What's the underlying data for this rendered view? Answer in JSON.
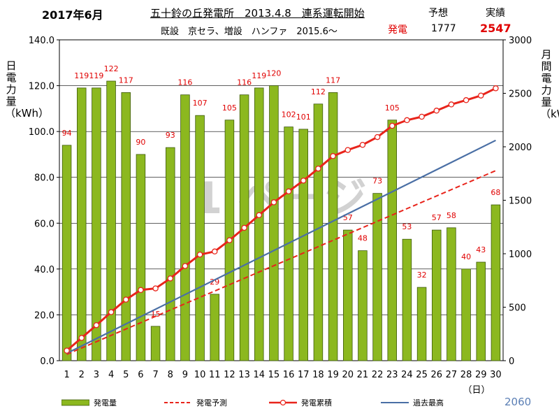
{
  "header": {
    "month": "2017年6月",
    "title": "五十鈴の丘発電所　2013.4.8　連系運転開始",
    "subtitle": "既設　京セラ、増設　ハンファ　2015.6～",
    "forecast_heading": "予想",
    "actual_heading": "実績",
    "generation_label": "発電",
    "forecast_value": "1777",
    "actual_value": "2547"
  },
  "legend": {
    "daily": "発電量",
    "forecast": "発電予測",
    "cumulative": "発電累積",
    "record": "過去最高",
    "value": "2060"
  },
  "chart_data": {
    "type": "bar",
    "left_axis_label": "日電力量（kWh）",
    "right_axis_label": "月間電力量（kWh）",
    "x_unit": "（日）",
    "days": [
      "1",
      "2",
      "3",
      "4",
      "5",
      "6",
      "7",
      "8",
      "9",
      "10",
      "11",
      "12",
      "13",
      "14",
      "15",
      "16",
      "17",
      "18",
      "19",
      "20",
      "21",
      "22",
      "23",
      "24",
      "25",
      "26",
      "27",
      "28",
      "29",
      "30"
    ],
    "left_ylim": [
      0,
      140
    ],
    "left_ticks": [
      "0.0",
      "20.0",
      "40.0",
      "60.0",
      "80.0",
      "100.0",
      "120.0",
      "140.0"
    ],
    "right_ylim": [
      0,
      3000
    ],
    "right_ticks": [
      "0",
      "500",
      "1000",
      "1500",
      "2000",
      "2500",
      "3000"
    ],
    "colors": {
      "bar": "#8cb81f",
      "bar_edge": "#3e5a0c",
      "label": "#e00000",
      "cumulative": "#e8241b",
      "forecast": "#e8241b",
      "record": "#4a6fa5"
    },
    "series": [
      {
        "name": "発電量",
        "type": "bar",
        "axis": "left",
        "values": [
          94,
          119,
          119,
          122,
          117,
          90,
          15,
          93,
          116,
          107,
          29,
          105,
          116,
          119,
          120,
          102,
          101,
          112,
          117,
          57,
          48,
          73,
          105,
          53,
          32,
          57,
          58,
          40,
          43,
          68
        ]
      },
      {
        "name": "発電累積",
        "type": "line",
        "axis": "right",
        "values": [
          94,
          213,
          332,
          454,
          571,
          661,
          676,
          769,
          885,
          992,
          1021,
          1126,
          1242,
          1361,
          1481,
          1583,
          1684,
          1796,
          1913,
          1970,
          2018,
          2091,
          2196,
          2249,
          2281,
          2338,
          2396,
          2436,
          2479,
          2547
        ]
      },
      {
        "name": "発電予測",
        "type": "line",
        "axis": "right",
        "points": [
          [
            1,
            59
          ],
          [
            30,
            1777
          ]
        ]
      },
      {
        "name": "過去最高",
        "type": "line",
        "axis": "right",
        "points": [
          [
            1,
            69
          ],
          [
            30,
            2060
          ]
        ]
      }
    ],
    "watermark": "1 ページ"
  }
}
